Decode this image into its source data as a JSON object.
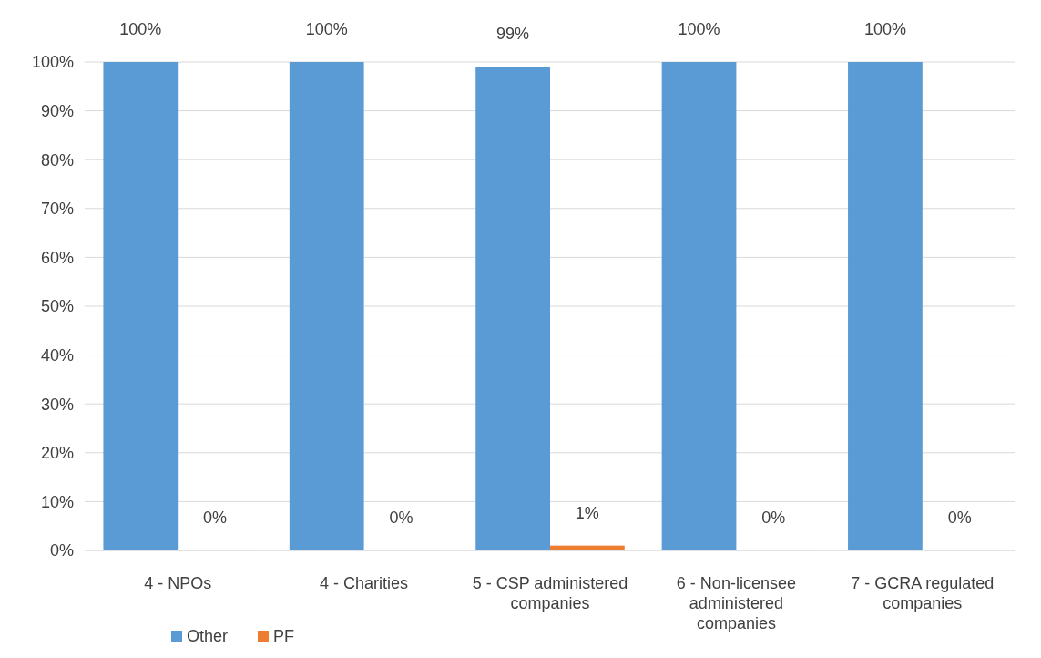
{
  "chart_data": {
    "type": "bar",
    "categories": [
      "4 - NPOs",
      "4 - Charities",
      "5 - CSP administered companies",
      "6 - Non-licensee administered companies",
      "7 - GCRA regulated companies"
    ],
    "series": [
      {
        "name": "Other",
        "color": "#5b9bd5",
        "values": [
          100,
          100,
          99,
          100,
          100
        ],
        "value_labels": [
          "100%",
          "100%",
          "99%",
          "100%",
          "100%"
        ]
      },
      {
        "name": "PF",
        "color": "#ed7d31",
        "values": [
          0,
          0,
          1,
          0,
          0
        ],
        "value_labels": [
          "0%",
          "0%",
          "1%",
          "0%",
          "0%"
        ]
      }
    ],
    "ylim": [
      0,
      100
    ],
    "yticks": [
      {
        "value": 0,
        "label": "0%"
      },
      {
        "value": 10,
        "label": "10%"
      },
      {
        "value": 20,
        "label": "20%"
      },
      {
        "value": 30,
        "label": "30%"
      },
      {
        "value": 40,
        "label": "40%"
      },
      {
        "value": 50,
        "label": "50%"
      },
      {
        "value": 60,
        "label": "60%"
      },
      {
        "value": 70,
        "label": "70%"
      },
      {
        "value": 80,
        "label": "80%"
      },
      {
        "value": 90,
        "label": "90%"
      },
      {
        "value": 100,
        "label": "100%"
      }
    ],
    "grid": "y",
    "legend": "bottom left"
  }
}
